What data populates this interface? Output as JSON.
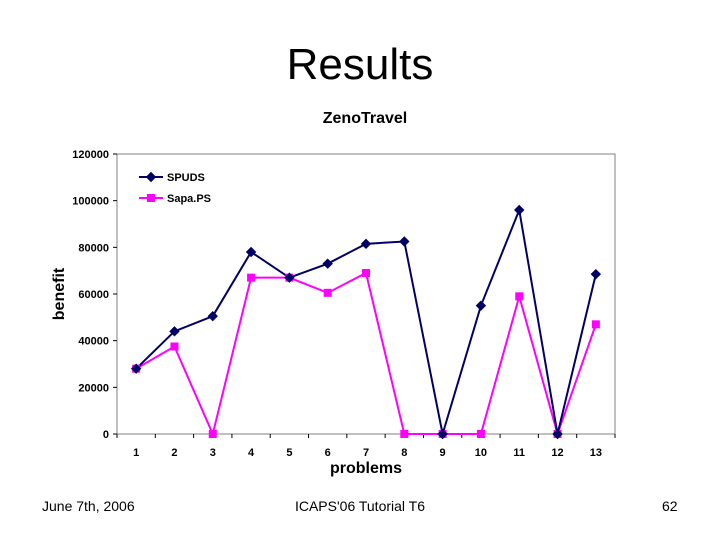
{
  "slide": {
    "title": "Results",
    "footer_left": "June 7th, 2006",
    "footer_center": "ICAPS'06 Tutorial T6",
    "footer_right": "62"
  },
  "chart_data": {
    "type": "line",
    "title": "ZenoTravel",
    "xlabel": "problems",
    "ylabel": "benefit",
    "categories": [
      "1",
      "2",
      "3",
      "4",
      "5",
      "6",
      "7",
      "8",
      "9",
      "10",
      "11",
      "12",
      "13"
    ],
    "ylim": [
      0,
      120000
    ],
    "yticks": [
      0,
      20000,
      40000,
      60000,
      80000,
      100000,
      120000
    ],
    "grid": false,
    "legend_position": "top-left",
    "series": [
      {
        "name": "SPUDS",
        "color": "#000066",
        "marker": "diamond",
        "values": [
          28000,
          44000,
          50500,
          78000,
          67000,
          73000,
          81500,
          82500,
          0,
          55000,
          96000,
          0,
          68500
        ]
      },
      {
        "name": "Sapa.PS",
        "color": "#ff00ff",
        "marker": "square",
        "values": [
          28000,
          37500,
          0,
          67000,
          67000,
          60500,
          69000,
          0,
          0,
          0,
          59000,
          0,
          47000
        ]
      }
    ]
  }
}
